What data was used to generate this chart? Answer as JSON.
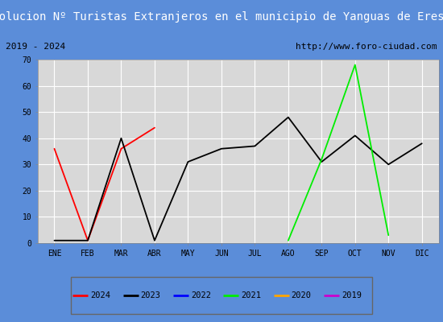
{
  "title": "Evolucion Nº Turistas Extranjeros en el municipio de Yanguas de Eresma",
  "subtitle_left": "2019 - 2024",
  "subtitle_right": "http://www.foro-ciudad.com",
  "months": [
    "ENE",
    "FEB",
    "MAR",
    "ABR",
    "MAY",
    "JUN",
    "JUL",
    "AGO",
    "SEP",
    "OCT",
    "NOV",
    "DIC"
  ],
  "ylim": [
    0,
    70
  ],
  "yticks": [
    0,
    10,
    20,
    30,
    40,
    50,
    60,
    70
  ],
  "series": {
    "2024": {
      "color": "#ff0000",
      "linewidth": 1.3,
      "data": [
        36,
        1,
        36,
        44,
        null,
        null,
        null,
        null,
        null,
        null,
        null,
        null
      ]
    },
    "2023": {
      "color": "#000000",
      "linewidth": 1.3,
      "data": [
        1,
        1,
        40,
        1,
        31,
        36,
        37,
        48,
        31,
        41,
        30,
        38
      ]
    },
    "2022": {
      "color": "#0000ff",
      "linewidth": 1.3,
      "data": [
        null,
        null,
        null,
        null,
        null,
        null,
        null,
        null,
        null,
        null,
        null,
        null
      ]
    },
    "2021": {
      "color": "#00ee00",
      "linewidth": 1.3,
      "data": [
        null,
        null,
        null,
        null,
        null,
        null,
        null,
        1,
        32,
        68,
        3,
        null
      ]
    },
    "2020": {
      "color": "#ffa500",
      "linewidth": 1.3,
      "data": [
        null,
        null,
        null,
        null,
        null,
        null,
        null,
        null,
        null,
        null,
        null,
        null
      ]
    },
    "2019": {
      "color": "#cc00cc",
      "linewidth": 1.3,
      "data": [
        null,
        null,
        null,
        null,
        null,
        null,
        null,
        null,
        null,
        null,
        null,
        null
      ]
    }
  },
  "legend_order": [
    "2024",
    "2023",
    "2022",
    "2021",
    "2020",
    "2019"
  ],
  "title_bg_color": "#4472c4",
  "title_font_color": "#ffffff",
  "title_fontsize": 10,
  "subtitle_fontsize": 8,
  "plot_bg_color": "#d8d8d8",
  "grid_color": "#ffffff",
  "outer_bg_color": "#5b8dd9",
  "fig_bg_color": "#c8d8f0"
}
